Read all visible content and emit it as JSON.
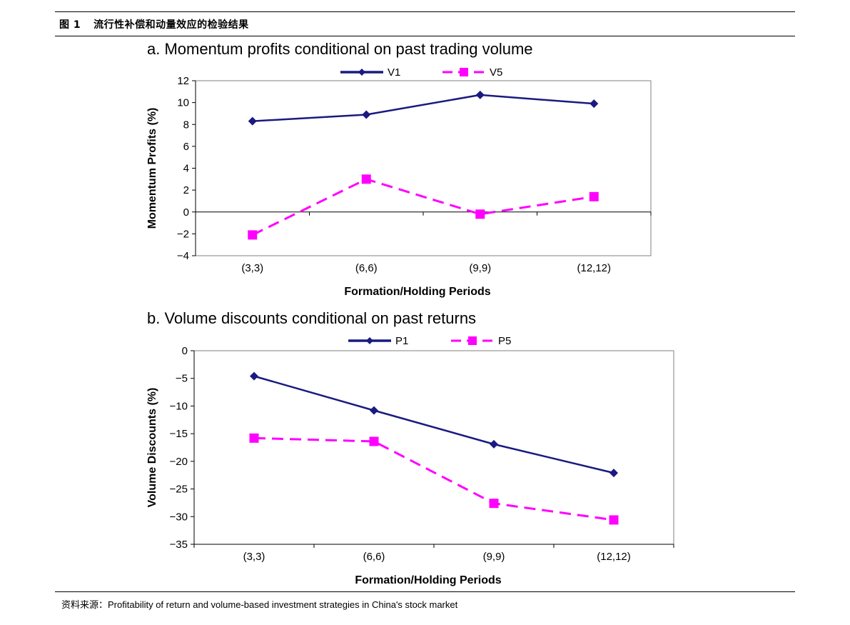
{
  "figure_label": "图 1",
  "figure_title": "流行性补偿和动量效应的检验结果",
  "source_label": "资料来源：",
  "source_text": "Profitability of return and volume-based investment strategies in China's stock market",
  "colors": {
    "series1": "#1a1a80",
    "series2": "#ff00ff"
  },
  "chart_data": [
    {
      "type": "line",
      "title": "a. Momentum profits conditional on past trading volume",
      "xlabel": "Formation/Holding Periods",
      "ylabel": "Momentum Profits (%)",
      "categories": [
        "(3,3)",
        "(6,6)",
        "(9,9)",
        "(12,12)"
      ],
      "ylim": [
        -4,
        12
      ],
      "yticks": [
        12,
        10,
        8,
        6,
        4,
        2,
        0,
        -2,
        -4
      ],
      "yticklabels": [
        "12",
        "10",
        "8",
        "6",
        "4",
        "2",
        "0",
        "−2",
        "−4"
      ],
      "legend_position": "top",
      "grid": false,
      "series": [
        {
          "name": "V1",
          "values": [
            8.3,
            8.9,
            10.7,
            9.9
          ],
          "style": "solid",
          "marker": "diamond"
        },
        {
          "name": "V5",
          "values": [
            -2.1,
            3.0,
            -0.2,
            1.4
          ],
          "style": "dashed",
          "marker": "square"
        }
      ]
    },
    {
      "type": "line",
      "title": "b. Volume discounts conditional on past returns",
      "xlabel": "Formation/Holding Periods",
      "ylabel": "Volume Discounts (%)",
      "categories": [
        "(3,3)",
        "(6,6)",
        "(9,9)",
        "(12,12)"
      ],
      "ylim": [
        -35,
        0
      ],
      "yticks": [
        0,
        -5,
        -10,
        -15,
        -20,
        -25,
        -30,
        -35
      ],
      "yticklabels": [
        "0",
        "−5",
        "−10",
        "−15",
        "−20",
        "−25",
        "−30",
        "−35"
      ],
      "legend_position": "top",
      "grid": false,
      "series": [
        {
          "name": "P1",
          "values": [
            -4.6,
            -10.8,
            -16.9,
            -22.1
          ],
          "style": "solid",
          "marker": "diamond"
        },
        {
          "name": "P5",
          "values": [
            -15.8,
            -16.4,
            -27.6,
            -30.6
          ],
          "style": "dashed",
          "marker": "square"
        }
      ]
    }
  ]
}
